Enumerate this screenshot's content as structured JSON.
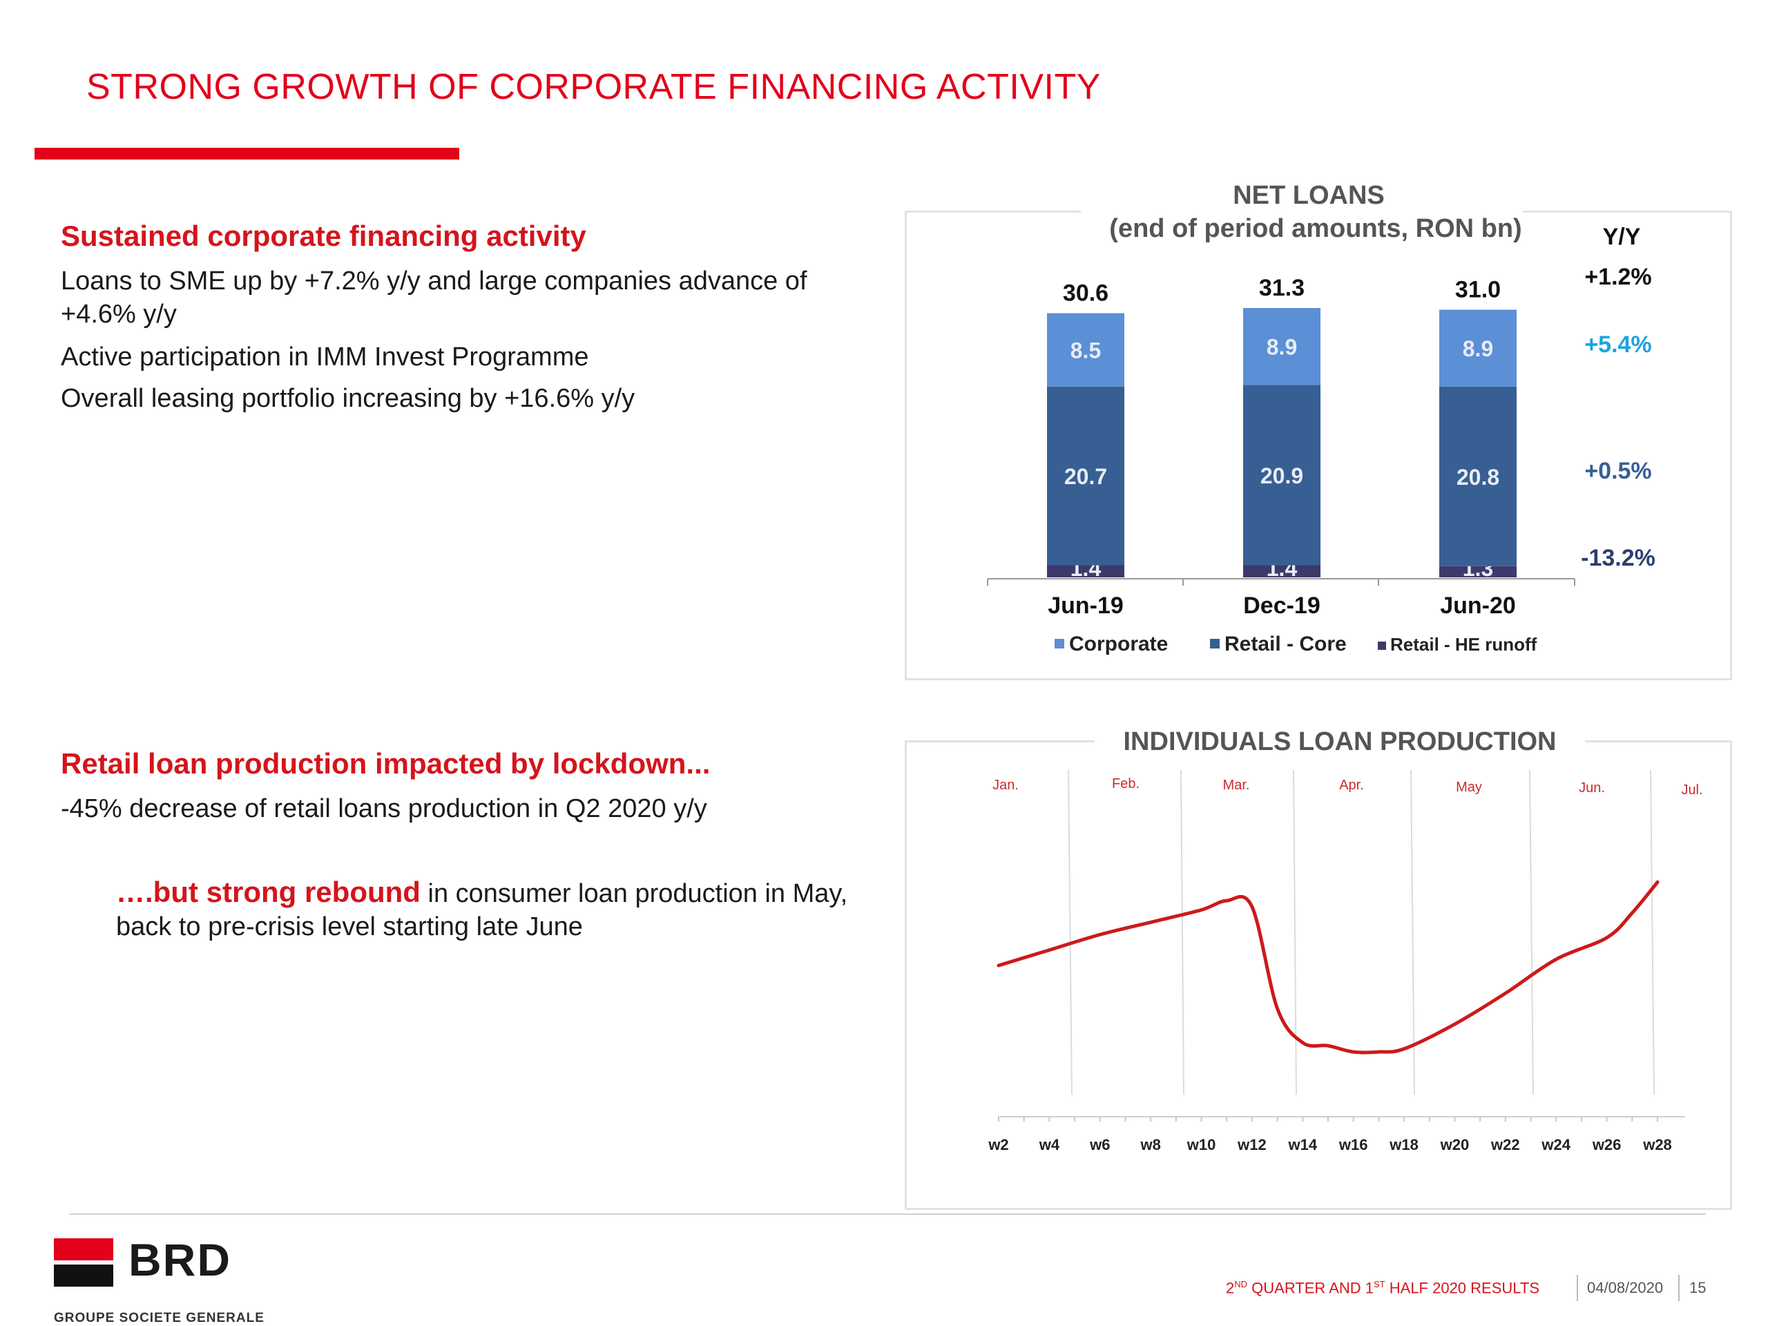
{
  "slide": {
    "title": "STRONG GROWTH OF CORPORATE FINANCING ACTIVITY"
  },
  "left": {
    "section1": {
      "heading": "Sustained corporate financing activity",
      "bullets": [
        "Loans to SME up by +7.2% y/y and large companies advance of +4.6% y/y",
        "Active participation in IMM Invest Programme",
        "Overall leasing portfolio increasing by +16.6% y/y"
      ]
    },
    "section2": {
      "heading": "Retail loan production impacted by lockdown...",
      "bullet": "-45% decrease of retail loans production in Q2 2020 y/y"
    },
    "section3": {
      "highlight": "….but strong rebound",
      "text": " in consumer loan production in May, back to pre-crisis level starting late June"
    }
  },
  "chart_data": [
    {
      "type": "bar",
      "stacked": true,
      "title": "NET LOANS",
      "subtitle": "(end of period amounts, RON bn)",
      "categories": [
        "Jun-19",
        "Dec-19",
        "Jun-20"
      ],
      "totals": [
        "30.6",
        "31.3",
        "31.0"
      ],
      "series": [
        {
          "name": "Retail - HE runoff",
          "values": [
            1.4,
            1.4,
            1.3
          ],
          "labels": [
            "1.4",
            "1.4",
            "1.3"
          ],
          "color": "#3d3a6b"
        },
        {
          "name": "Retail - Core",
          "values": [
            20.7,
            20.9,
            20.8
          ],
          "labels": [
            "20.7",
            "20.9",
            "20.8"
          ],
          "color": "#375f93"
        },
        {
          "name": "Corporate",
          "values": [
            8.5,
            8.9,
            8.9
          ],
          "labels": [
            "8.5",
            "8.9",
            "8.9"
          ],
          "color": "#5b8fd6"
        }
      ],
      "yoy": {
        "header": "Y/Y",
        "total": "+1.2%",
        "corporate": "+5.4%",
        "retail_core": "+0.5%",
        "retail_he": "-13.2%"
      },
      "legend": [
        "Corporate",
        "Retail - Core",
        "Retail - HE runoff"
      ],
      "legend_position": "bottom"
    },
    {
      "type": "line",
      "title": "INDIVIDUALS LOAN PRODUCTION",
      "months": [
        "Jan.",
        "Feb.",
        "Mar.",
        "Apr.",
        "May",
        "Jun.",
        "Jul."
      ],
      "x_tick_labels": [
        "w2",
        "w4",
        "w6",
        "w8",
        "w10",
        "w12",
        "w14",
        "w16",
        "w18",
        "w20",
        "w22",
        "w24",
        "w26",
        "w28"
      ],
      "x": [
        2,
        4,
        6,
        8,
        10,
        11,
        12,
        13,
        14,
        15,
        16,
        17,
        18,
        20,
        22,
        24,
        26,
        27,
        28
      ],
      "values": [
        49,
        54,
        59,
        63,
        67,
        70,
        68,
        35,
        24,
        23,
        21,
        21,
        22,
        30,
        40,
        51,
        58,
        66,
        76
      ],
      "y_axis_labels": "none",
      "grid": "vertical month separators",
      "line_color": "#cc1a1a"
    }
  ],
  "footer": {
    "brand": "BRD",
    "brand_sub": "GROUPE SOCIETE GENERALE",
    "report_1": "2",
    "report_sup1": "ND",
    "report_2": " QUARTER AND 1",
    "report_sup2": "ST",
    "report_3": " HALF 2020 RESULTS",
    "date": "04/08/2020",
    "page": "15"
  }
}
